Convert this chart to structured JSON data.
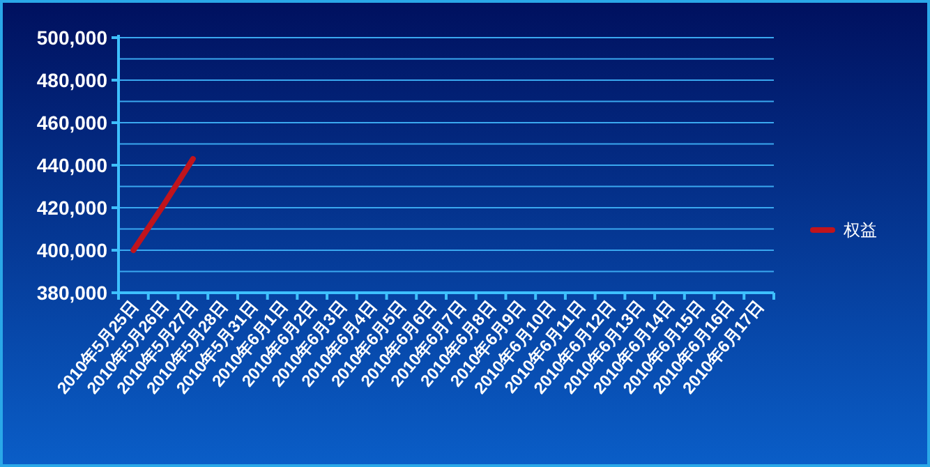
{
  "chart_data": {
    "type": "line",
    "categories": [
      "2010年5月25日",
      "2010年5月26日",
      "2010年5月27日",
      "2010年5月28日",
      "2010年5月31日",
      "2010年6月1日",
      "2010年6月2日",
      "2010年6月3日",
      "2010年6月4日",
      "2010年6月5日",
      "2010年6月6日",
      "2010年6月7日",
      "2010年6月8日",
      "2010年6月9日",
      "2010年6月10日",
      "2010年6月11日",
      "2010年6月12日",
      "2010年6月13日",
      "2010年6月14日",
      "2010年6月15日",
      "2010年6月16日",
      "2010年6月17日"
    ],
    "series": [
      {
        "name": "权益",
        "color": "#c0141c",
        "values": [
          400000,
          421000,
          443000,
          null,
          null,
          null,
          null,
          null,
          null,
          null,
          null,
          null,
          null,
          null,
          null,
          null,
          null,
          null,
          null,
          null,
          null,
          null
        ]
      }
    ],
    "ylim": [
      380000,
      500000
    ],
    "yticks": [
      {
        "value": 380000,
        "label": "380,000"
      },
      {
        "value": 390000,
        "label": null
      },
      {
        "value": 400000,
        "label": "400,000"
      },
      {
        "value": 410000,
        "label": null
      },
      {
        "value": 420000,
        "label": "420,000"
      },
      {
        "value": 430000,
        "label": null
      },
      {
        "value": 440000,
        "label": "440,000"
      },
      {
        "value": 450000,
        "label": null
      },
      {
        "value": 460000,
        "label": "460,000"
      },
      {
        "value": 470000,
        "label": null
      },
      {
        "value": 480000,
        "label": "480,000"
      },
      {
        "value": 490000,
        "label": null
      },
      {
        "value": 500000,
        "label": "500,000"
      }
    ],
    "grid": "y",
    "legend": "right",
    "marker": "none",
    "line_style": "solid"
  }
}
